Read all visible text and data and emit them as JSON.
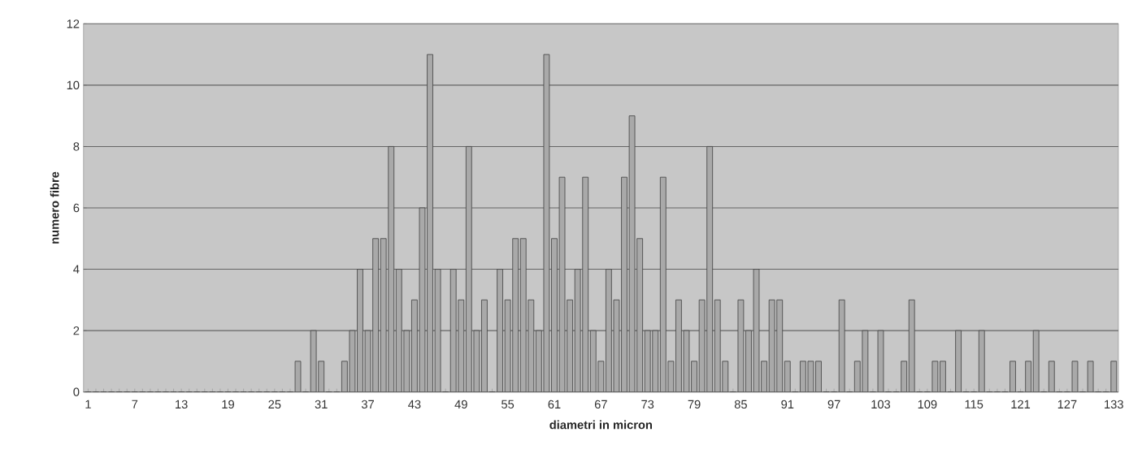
{
  "chart_data": {
    "type": "bar",
    "xlabel": "diametri in micron",
    "ylabel": "numero fibre",
    "categories": [
      "1",
      null,
      null,
      null,
      null,
      null,
      "7",
      null,
      null,
      null,
      null,
      null,
      "13",
      null,
      null,
      null,
      null,
      null,
      "19",
      null,
      null,
      null,
      null,
      null,
      "25",
      null,
      null,
      null,
      null,
      null,
      "31",
      null,
      null,
      null,
      null,
      null,
      "37",
      null,
      null,
      null,
      null,
      null,
      "43",
      null,
      null,
      null,
      null,
      null,
      "49",
      null,
      null,
      null,
      null,
      null,
      "55",
      null,
      null,
      null,
      null,
      null,
      "61",
      null,
      null,
      null,
      null,
      null,
      "67",
      null,
      null,
      null,
      null,
      null,
      "73",
      null,
      null,
      null,
      null,
      null,
      "79",
      null,
      null,
      null,
      null,
      null,
      "85",
      null,
      null,
      null,
      null,
      null,
      "91",
      null,
      null,
      null,
      null,
      null,
      "97",
      null,
      null,
      null,
      null,
      null,
      "103",
      null,
      null,
      null,
      null,
      null,
      "109",
      null,
      null,
      null,
      null,
      null,
      "115",
      null,
      null,
      null,
      null,
      null,
      "121",
      null,
      null,
      null,
      null,
      null,
      "127",
      null,
      null,
      null,
      null,
      null,
      "133"
    ],
    "values": [
      0,
      0,
      0,
      0,
      0,
      0,
      0,
      0,
      0,
      0,
      0,
      0,
      0,
      0,
      0,
      0,
      0,
      0,
      0,
      0,
      0,
      0,
      0,
      0,
      0,
      0,
      0,
      1,
      0,
      2,
      1,
      0,
      0,
      1,
      2,
      4,
      2,
      5,
      5,
      8,
      4,
      2,
      3,
      6,
      11,
      4,
      0,
      4,
      3,
      8,
      2,
      3,
      0,
      4,
      3,
      5,
      5,
      3,
      2,
      11,
      5,
      7,
      3,
      4,
      7,
      2,
      1,
      4,
      3,
      7,
      9,
      5,
      2,
      2,
      7,
      1,
      3,
      2,
      1,
      3,
      8,
      3,
      1,
      0,
      3,
      2,
      4,
      1,
      3,
      3,
      1,
      0,
      1,
      1,
      1,
      0,
      0,
      3,
      0,
      1,
      2,
      0,
      2,
      0,
      0,
      1,
      3,
      0,
      0,
      1,
      1,
      0,
      2,
      0,
      0,
      2,
      0,
      0,
      0,
      1,
      0,
      1,
      2,
      0,
      1,
      0,
      0,
      1,
      0,
      1,
      0,
      0,
      1
    ],
    "color": "#a9a9a9",
    "ylim": [
      0,
      12
    ],
    "yticks": [
      0,
      2,
      4,
      6,
      8,
      10,
      12
    ],
    "grid": "y"
  }
}
